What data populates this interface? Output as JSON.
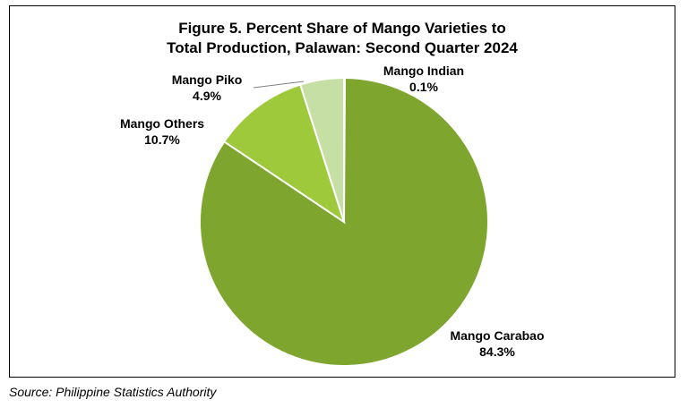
{
  "chart_data": {
    "type": "pie",
    "title_line1": "Figure 5. Percent Share of Mango Varieties to",
    "title_line2": "Total Production, Palawan: Second Quarter 2024",
    "slices": [
      {
        "name": "Mango Indian",
        "value": 0.1,
        "label": "0.1%",
        "color": "#4E7A1E"
      },
      {
        "name": "Mango Carabao",
        "value": 84.3,
        "label": "84.3%",
        "color": "#7EA62E"
      },
      {
        "name": "Mango Others",
        "value": 10.7,
        "label": "10.7%",
        "color": "#9DC93B"
      },
      {
        "name": "Mango Piko",
        "value": 4.9,
        "label": "4.9%",
        "color": "#C6DFA4"
      }
    ],
    "start_angle": "12 o'clock",
    "direction": "clockwise",
    "legend": "none"
  },
  "source": "Source: Philippine Statistics Authority"
}
